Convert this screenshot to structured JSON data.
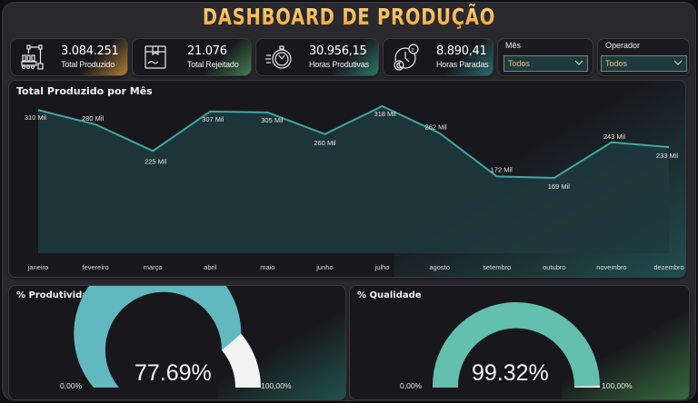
{
  "header": {
    "title": "DASHBOARD DE PRODUÇÃO"
  },
  "kpis": [
    {
      "value": "3.084.251",
      "label": "Total Produzido",
      "icon": "robot-arm-factory-icon",
      "accent": "#e0a43c"
    },
    {
      "value": "21.076",
      "label": "Total Rejeitado",
      "icon": "box-icon",
      "accent": "#4f9a5e"
    },
    {
      "value": "30.956,15",
      "label": "Horas Produtivas",
      "icon": "stopwatch-icon",
      "accent": "#2f8a78"
    },
    {
      "value": "8.890,41",
      "label": "Horas Paradas",
      "icon": "clock-sleep-icon",
      "accent": "#2b7f83"
    }
  ],
  "filters": {
    "mes": {
      "label": "Mês",
      "selected": "Todos"
    },
    "operador": {
      "label": "Operador",
      "selected": "Todos"
    }
  },
  "line_chart": {
    "title": "Total Produzido por Mês"
  },
  "gauges": [
    {
      "title": "% Produtividade",
      "value": "77.69%",
      "min": "0,00%",
      "max": "100,00%",
      "fill_color": "#62b8bf",
      "rest_color": "#f2f2f2"
    },
    {
      "title": "% Qualidade",
      "value": "99.32%",
      "min": "0,00%",
      "max": "100,00%",
      "fill_color": "#63bfae",
      "rest_color": "#f2f2f2"
    }
  ],
  "colors": {
    "accent_gold": "#f2a43a",
    "line": "#3fa7a3",
    "area": "#1f3a3e",
    "panel": "#18181c"
  },
  "chart_data": [
    {
      "type": "area",
      "title": "Total Produzido por Mês",
      "xlabel": "",
      "ylabel": "",
      "categories": [
        "janeiro",
        "fevereiro",
        "março",
        "abril",
        "maio",
        "junho",
        "julho",
        "agosto",
        "setembro",
        "outubro",
        "novembro",
        "dezembro"
      ],
      "values": [
        310000,
        280000,
        225000,
        307000,
        305000,
        260000,
        318000,
        262000,
        172000,
        169000,
        243000,
        233000
      ],
      "data_labels": [
        "310 Mil",
        "280 Mil",
        "225 Mil",
        "307 Mil",
        "305 Mil",
        "260 Mil",
        "318 Mil",
        "262 Mil",
        "172 Mil",
        "169 Mil",
        "243 Mil",
        "233 Mil"
      ],
      "grid": false,
      "legend": "none"
    },
    {
      "type": "gauge",
      "title": "% Produtividade",
      "value": 77.69,
      "min": 0,
      "max": 100
    },
    {
      "type": "gauge",
      "title": "% Qualidade",
      "value": 99.32,
      "min": 0,
      "max": 100
    }
  ]
}
